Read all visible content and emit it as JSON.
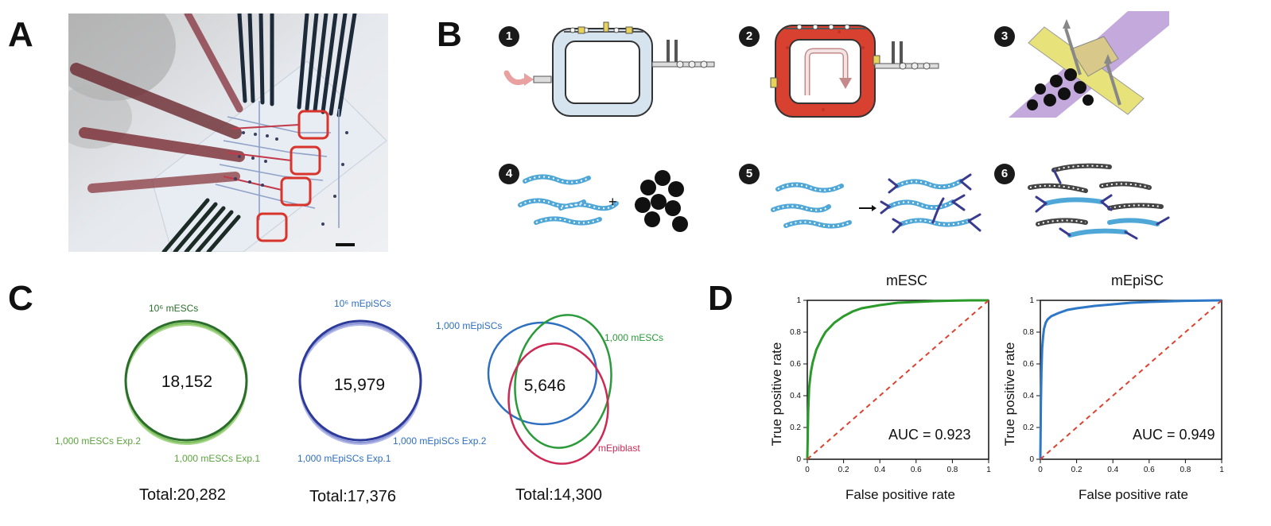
{
  "panels": {
    "a": "A",
    "b": "B",
    "c": "C",
    "d": "D"
  },
  "steps": [
    "1",
    "2",
    "3",
    "4",
    "5",
    "6"
  ],
  "step4_plus": "+",
  "venn": [
    {
      "top_label": "10⁶ mESCs",
      "center": "18,152",
      "label_a": "1,000 mESCs Exp.2",
      "label_b": "1,000 mESCs Exp.1",
      "total": "Total:20,282",
      "colors": [
        "#2b6e2b",
        "#7bbf5a"
      ]
    },
    {
      "top_label": "10⁶ mEpiSCs",
      "center": "15,979",
      "label_a": "1,000 mEpiSCs Exp.2",
      "label_b": "1,000 mEpiSCs Exp.1",
      "total": "Total:17,376",
      "colors": [
        "#2c3a9a",
        "#8a94d6"
      ]
    },
    {
      "label_epi": "1,000 mEpiSCs",
      "label_esc": "1,000 mESCs",
      "label_blast": "mEpiblast",
      "center": "5,646",
      "total": "Total:14,300",
      "colors": [
        "#2e6fc0",
        "#2a9a3a",
        "#cc2a55"
      ]
    }
  ],
  "chart_data": [
    {
      "type": "line",
      "title": "mESC",
      "xlabel": "False positive rate",
      "ylabel": "True positive rate",
      "xlim": [
        0,
        1
      ],
      "ylim": [
        0,
        1
      ],
      "xticks": [
        "0",
        "0.2",
        "0.4",
        "0.6",
        "0.8",
        "1"
      ],
      "yticks": [
        "0",
        "0.2",
        "0.4",
        "0.6",
        "0.8",
        "1"
      ],
      "annotation": "AUC = 0.923",
      "series": [
        {
          "color": "#2a9a2a",
          "x": [
            0,
            0.005,
            0.01,
            0.02,
            0.03,
            0.05,
            0.08,
            0.1,
            0.15,
            0.2,
            0.25,
            0.3,
            0.4,
            0.5,
            0.6,
            0.7,
            0.8,
            0.9,
            1
          ],
          "y": [
            0,
            0.3,
            0.45,
            0.55,
            0.61,
            0.69,
            0.76,
            0.8,
            0.86,
            0.9,
            0.93,
            0.95,
            0.97,
            0.985,
            0.99,
            0.995,
            0.998,
            1,
            1
          ]
        },
        {
          "color": "#d9432f",
          "dashed": true,
          "x": [
            0,
            1
          ],
          "y": [
            0,
            1
          ]
        }
      ]
    },
    {
      "type": "line",
      "title": "mEpiSC",
      "xlabel": "False positive rate",
      "ylabel": "True positive rate",
      "xlim": [
        0,
        1
      ],
      "ylim": [
        0,
        1
      ],
      "xticks": [
        "0",
        "0.2",
        "0.4",
        "0.6",
        "0.8",
        "1"
      ],
      "yticks": [
        "0",
        "0.2",
        "0.4",
        "0.6",
        "0.8",
        "1"
      ],
      "annotation": "AUC = 0.949",
      "series": [
        {
          "color": "#2e78c8",
          "x": [
            0,
            0.003,
            0.006,
            0.01,
            0.015,
            0.02,
            0.03,
            0.04,
            0.06,
            0.08,
            0.1,
            0.15,
            0.2,
            0.3,
            0.4,
            0.5,
            0.6,
            0.8,
            1
          ],
          "y": [
            0,
            0.35,
            0.55,
            0.7,
            0.77,
            0.82,
            0.86,
            0.88,
            0.9,
            0.91,
            0.92,
            0.94,
            0.95,
            0.965,
            0.975,
            0.985,
            0.99,
            0.997,
            1
          ]
        },
        {
          "color": "#d9432f",
          "dashed": true,
          "x": [
            0,
            1
          ],
          "y": [
            0,
            1
          ]
        }
      ]
    }
  ]
}
